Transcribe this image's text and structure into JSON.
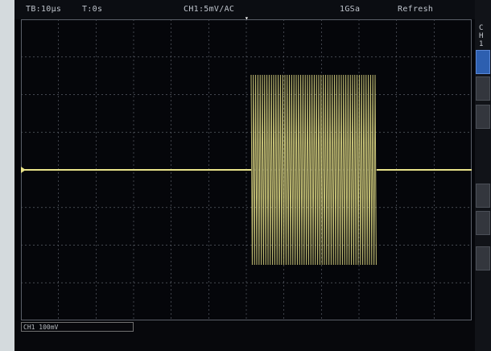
{
  "status_bar": {
    "timebase": "TB:10µs",
    "trigger_time": "T:0s",
    "channel_scale": "CH1:5mV/AC",
    "sample_rate": "1GSa",
    "mode": "Refresh"
  },
  "side_panel": {
    "channel_letters": [
      "C",
      "H",
      "1"
    ]
  },
  "bottom_bar": {
    "channel_info": "CH1 100mV"
  },
  "colors": {
    "trace": "#e9e38a",
    "grid": "#5a5f68",
    "background": "#05060a",
    "accent": "#2d5fb0"
  },
  "icons": {
    "trigger_marker": "arrow-down-icon",
    "ground_marker": "ground-level-icon"
  }
}
